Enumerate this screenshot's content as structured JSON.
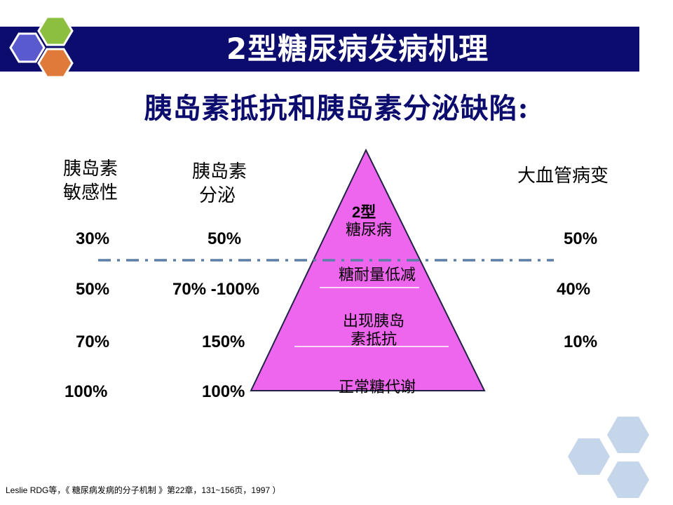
{
  "header": {
    "title": "2型糖尿病发病机理",
    "subtitle": "胰岛素抵抗和胰岛素分泌缺陷:"
  },
  "columns": {
    "sensitivity": {
      "heading_line1": "胰岛素",
      "heading_line2": "敏感性",
      "values": [
        "30%",
        "50%",
        "70%",
        "100%"
      ]
    },
    "secretion": {
      "heading_line1": "胰岛素",
      "heading_line2": "分泌",
      "values": [
        "50%",
        "70% -100%",
        "150%",
        "100%"
      ]
    },
    "macrovascular": {
      "heading": "大血管病变",
      "values": [
        "50%",
        "40%",
        "10%"
      ]
    }
  },
  "pyramid": {
    "fill_color": "#ee66ee",
    "stages": [
      {
        "line1": "2型",
        "line2": "糖尿病"
      },
      {
        "line1": "糖耐量低减",
        "line2": ""
      },
      {
        "line1": "出现胰岛",
        "line2": "素抵抗"
      },
      {
        "line1": "正常糖代谢",
        "line2": ""
      }
    ]
  },
  "colors": {
    "title_bar": "#0c0c6e",
    "subtitle": "#0c0c6e",
    "dashed_line": "#5b7fa6",
    "hex_blue": "#5a5acf",
    "hex_green": "#8cbf3f",
    "hex_orange": "#e07a3a",
    "hex_light": "#c5d6ea"
  },
  "footnote": "Leslie RDG等，《 糖尿病发病的分子机制 》第22章，131~156页，1997 ）"
}
